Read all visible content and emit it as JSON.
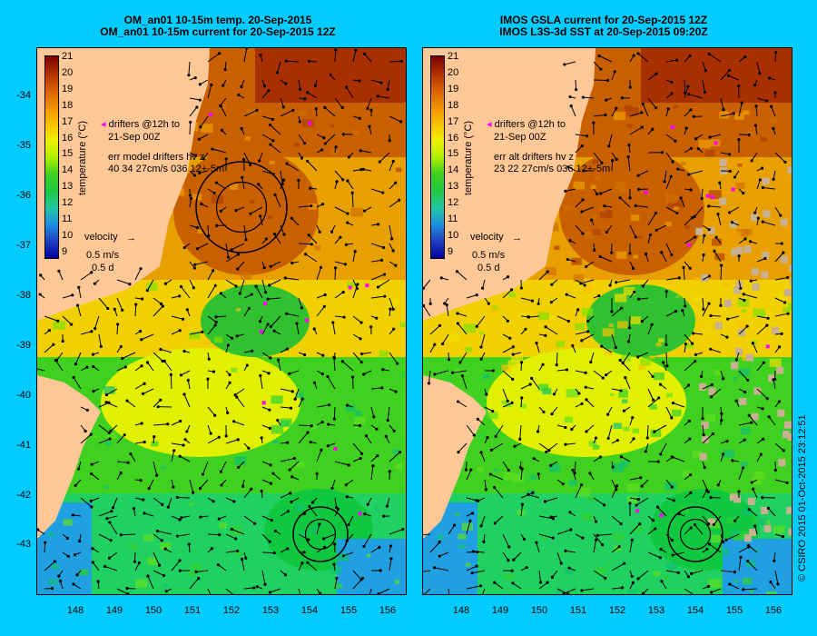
{
  "left": {
    "title_line1": "OM_an01 10-15m temp. 20-Sep-2015",
    "title_line2": "OM_an01 10-15m current for 20-Sep-2015 12Z",
    "drifter_line1": "drifters @12h to",
    "drifter_line2": "21-Sep 00Z",
    "err_line1": "err model drifters hv z",
    "err_line2": "40 34 27cm/s 036 12+-5m",
    "velocity_label": "velocity",
    "velocity_speed": "0.5 m/s",
    "velocity_time": "0.5 d"
  },
  "right": {
    "title_line1": "IMOS GSLA current for 20-Sep-2015 12Z",
    "title_line2": "IMOS L3S-3d SST at 20-Sep-2015 09:20Z",
    "drifter_line1": "drifters @12h to",
    "drifter_line2": "21-Sep 00Z",
    "err_line1": "err alt drifters hv z",
    "err_line2": "23 22 27cm/s 036 12+-5m",
    "velocity_label": "velocity",
    "velocity_speed": "0.5 m/s",
    "velocity_time": "0.5 d"
  },
  "colorbar": {
    "title": "temperature (°C)",
    "ticks": [
      "21",
      "20",
      "19",
      "18",
      "17",
      "16",
      "15",
      "14",
      "13",
      "12",
      "11",
      "10",
      "9"
    ]
  },
  "lat_ticks": [
    "-34",
    "-35",
    "-36",
    "-37",
    "-38",
    "-39",
    "-40",
    "-41",
    "-42",
    "-43"
  ],
  "lon_ticks": [
    "148",
    "149",
    "150",
    "151",
    "152",
    "153",
    "154",
    "155",
    "156"
  ],
  "credit": "© CSIRO 2015   01-Oct-2015 23:12:51",
  "map_data": {
    "lon_range": [
      147.0,
      156.6
    ],
    "lat_range": [
      -43.9,
      -33.0
    ],
    "temp_range": [
      9,
      21
    ],
    "land_color": "#ffc896",
    "background_color": "#00ccff",
    "drifter_color": "#ff00ff",
    "eddies": [
      {
        "panel": "left",
        "lon": 152.2,
        "lat": -36.4,
        "type": "warm anticyclonic"
      },
      {
        "panel": "left",
        "lon": 154.3,
        "lat": -42.9,
        "type": "cyclonic"
      },
      {
        "panel": "right",
        "lon": 153.8,
        "lat": -42.9,
        "type": "cyclonic"
      }
    ]
  }
}
